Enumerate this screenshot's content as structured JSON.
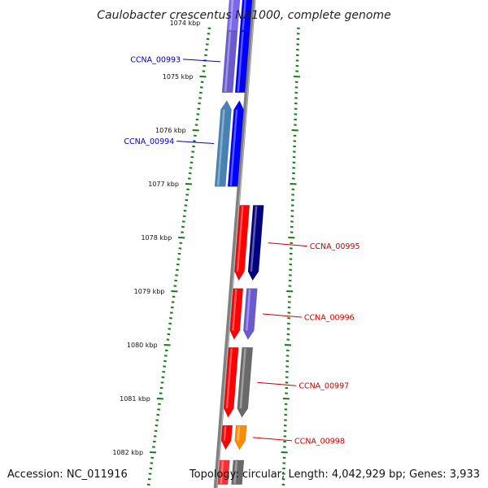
{
  "title": "Caulobacter crescentus NA1000, complete genome",
  "footer": {
    "accession": "Accession: NC_011916",
    "topology": "Topology: circular; Length: 4,042,929 bp; Genes: 3,933"
  },
  "colors": {
    "backbone": "#808080",
    "tick": "#1a7a1a",
    "label_forward": "#0000b4",
    "label_reverse": "#cc0000"
  },
  "position_ticks": [
    {
      "label": "1074 kbp",
      "kbp": 1074
    },
    {
      "label": "1075 kbp",
      "kbp": 1075
    },
    {
      "label": "1076 kbp",
      "kbp": 1076
    },
    {
      "label": "1077 kbp",
      "kbp": 1077
    },
    {
      "label": "1078 kbp",
      "kbp": 1078
    },
    {
      "label": "1079 kbp",
      "kbp": 1079
    },
    {
      "label": "1080 kbp",
      "kbp": 1080
    },
    {
      "label": "1081 kbp",
      "kbp": 1081
    },
    {
      "label": "1082 kbp",
      "kbp": 1082
    }
  ],
  "genes": [
    {
      "label": "",
      "strand": "forward",
      "start_kbp": 1073.5,
      "end_kbp": 1074.15,
      "arrow": false,
      "outer_color": "#7b68ee",
      "inner_color": "#0000ff"
    },
    {
      "label": "CCNA_00993",
      "strand": "forward",
      "start_kbp": 1074.15,
      "end_kbp": 1075.3,
      "arrow": false,
      "outer_color": "#6a5acd",
      "inner_color": "#0000ff"
    },
    {
      "label": "CCNA_00994",
      "strand": "forward",
      "start_kbp": 1075.45,
      "end_kbp": 1077.05,
      "arrow": true,
      "outer_color": "#4682b4",
      "inner_color": "#0000ff"
    },
    {
      "label": "CCNA_00995",
      "strand": "reverse",
      "start_kbp": 1077.4,
      "end_kbp": 1078.8,
      "arrow": true,
      "outer_color": "#000080",
      "inner_color": "#ff0000"
    },
    {
      "label": "CCNA_00996",
      "strand": "reverse",
      "start_kbp": 1078.95,
      "end_kbp": 1079.9,
      "arrow": true,
      "outer_color": "#6a5acd",
      "inner_color": "#ff0000"
    },
    {
      "label": "CCNA_00997",
      "strand": "reverse",
      "start_kbp": 1080.05,
      "end_kbp": 1081.35,
      "arrow": true,
      "outer_color": "#696969",
      "inner_color": "#ff0000"
    },
    {
      "label": "CCNA_00998",
      "strand": "reverse",
      "start_kbp": 1081.5,
      "end_kbp": 1081.95,
      "arrow": true,
      "outer_color": "#ff8c00",
      "inner_color": "#ff0000"
    },
    {
      "label": "",
      "strand": "reverse",
      "start_kbp": 1082.15,
      "end_kbp": 1082.6,
      "arrow": false,
      "outer_color": "#696969",
      "inner_color": "#ff3030"
    }
  ]
}
